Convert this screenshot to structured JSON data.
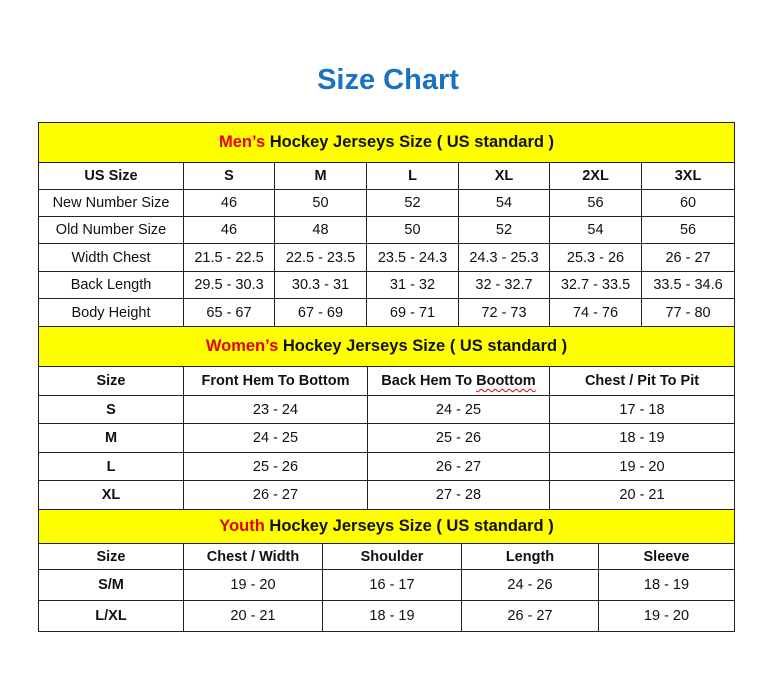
{
  "title": "Size Chart",
  "colors": {
    "title": "#1a72c0",
    "band": "#ffff00",
    "accent": "#e30000"
  },
  "mens": {
    "band_accent": "Men’s",
    "band_rest": " Hockey Jerseys Size ( US standard )",
    "headers": [
      "US Size",
      "S",
      "M",
      "L",
      "XL",
      "2XL",
      "3XL"
    ],
    "rows": [
      [
        "New Number Size",
        "46",
        "50",
        "52",
        "54",
        "56",
        "60"
      ],
      [
        "Old Number Size",
        "46",
        "48",
        "50",
        "52",
        "54",
        "56"
      ],
      [
        "Width Chest",
        "21.5 - 22.5",
        "22.5 - 23.5",
        "23.5 - 24.3",
        "24.3 - 25.3",
        "25.3 - 26",
        "26 - 27"
      ],
      [
        "Back Length",
        "29.5 - 30.3",
        "30.3 - 31",
        "31 - 32",
        "32 - 32.7",
        "32.7 - 33.5",
        "33.5 - 34.6"
      ],
      [
        "Body Height",
        "65 - 67",
        "67 - 69",
        "69 - 71",
        "72 - 73",
        "74 - 76",
        "77 - 80"
      ]
    ]
  },
  "womens": {
    "band_accent": "Women’s",
    "band_rest": " Hockey Jerseys Size ( US standard )",
    "headers": [
      "Size",
      "Front Hem To Bottom",
      "Back Hem To Boottom",
      "Chest / Pit To Pit"
    ],
    "rows": [
      [
        "S",
        "23 - 24",
        "24 - 25",
        "17 - 18"
      ],
      [
        "M",
        "24 - 25",
        "25 - 26",
        "18 - 19"
      ],
      [
        "L",
        "25 - 26",
        "26 - 27",
        "19 - 20"
      ],
      [
        "XL",
        "26 - 27",
        "27 - 28",
        "20 - 21"
      ]
    ]
  },
  "youth": {
    "band_accent": "Youth",
    "band_rest": " Hockey Jerseys Size ( US standard )",
    "headers": [
      "Size",
      "Chest / Width",
      "Shoulder",
      "Length",
      "Sleeve"
    ],
    "rows": [
      [
        "S/M",
        "19 - 20",
        "16 - 17",
        "24 - 26",
        "18 - 19"
      ],
      [
        "L/XL",
        "20 - 21",
        "18 - 19",
        "26 - 27",
        "19 - 20"
      ]
    ]
  }
}
